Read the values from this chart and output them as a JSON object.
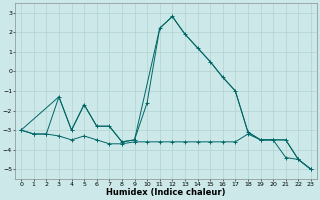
{
  "title": "",
  "xlabel": "Humidex (Indice chaleur)",
  "ylabel": "",
  "background_color": "#cce8e8",
  "grid_color": "#aacccc",
  "line_color": "#006666",
  "xlim": [
    -0.5,
    23.5
  ],
  "ylim": [
    -5.5,
    3.5
  ],
  "yticks": [
    -5,
    -4,
    -3,
    -2,
    -1,
    0,
    1,
    2,
    3
  ],
  "xticks": [
    0,
    1,
    2,
    3,
    4,
    5,
    6,
    7,
    8,
    9,
    10,
    11,
    12,
    13,
    14,
    15,
    16,
    17,
    18,
    19,
    20,
    21,
    22,
    23
  ],
  "series1_x": [
    0,
    1,
    2,
    3,
    4,
    5,
    6,
    7,
    8,
    9,
    10,
    11,
    12,
    13,
    14,
    15,
    16,
    17,
    18,
    19,
    20,
    21,
    22,
    23
  ],
  "series1_y": [
    -3.0,
    -3.2,
    -3.2,
    -1.3,
    -3.0,
    -1.7,
    -2.8,
    -2.8,
    -3.6,
    -3.5,
    -1.6,
    2.2,
    2.8,
    1.9,
    1.2,
    0.5,
    -0.3,
    -1.0,
    -3.1,
    -3.5,
    -3.5,
    -4.4,
    -4.5,
    -5.0
  ],
  "series2_x": [
    0,
    1,
    2,
    3,
    4,
    5,
    6,
    7,
    8,
    9,
    10,
    11,
    12,
    13,
    14,
    15,
    16,
    17,
    18,
    19,
    20,
    21,
    22,
    23
  ],
  "series2_y": [
    -3.0,
    -3.2,
    -3.2,
    -3.3,
    -3.5,
    -3.3,
    -3.5,
    -3.7,
    -3.7,
    -3.6,
    -3.6,
    -3.6,
    -3.6,
    -3.6,
    -3.6,
    -3.6,
    -3.6,
    -3.6,
    -3.2,
    -3.5,
    -3.5,
    -3.5,
    -4.5,
    -5.0
  ],
  "series3_x": [
    0,
    3,
    4,
    5,
    6,
    7,
    8,
    9,
    11,
    12,
    13,
    14,
    15,
    16,
    17,
    18,
    19,
    20,
    21,
    22,
    23
  ],
  "series3_y": [
    -3.0,
    -1.3,
    -3.0,
    -1.7,
    -2.8,
    -2.8,
    -3.6,
    -3.5,
    2.2,
    2.8,
    1.9,
    1.2,
    0.5,
    -0.3,
    -1.0,
    -3.1,
    -3.5,
    -3.5,
    -3.5,
    -4.5,
    -5.0
  ],
  "tick_fontsize": 4.5,
  "xlabel_fontsize": 6.0
}
